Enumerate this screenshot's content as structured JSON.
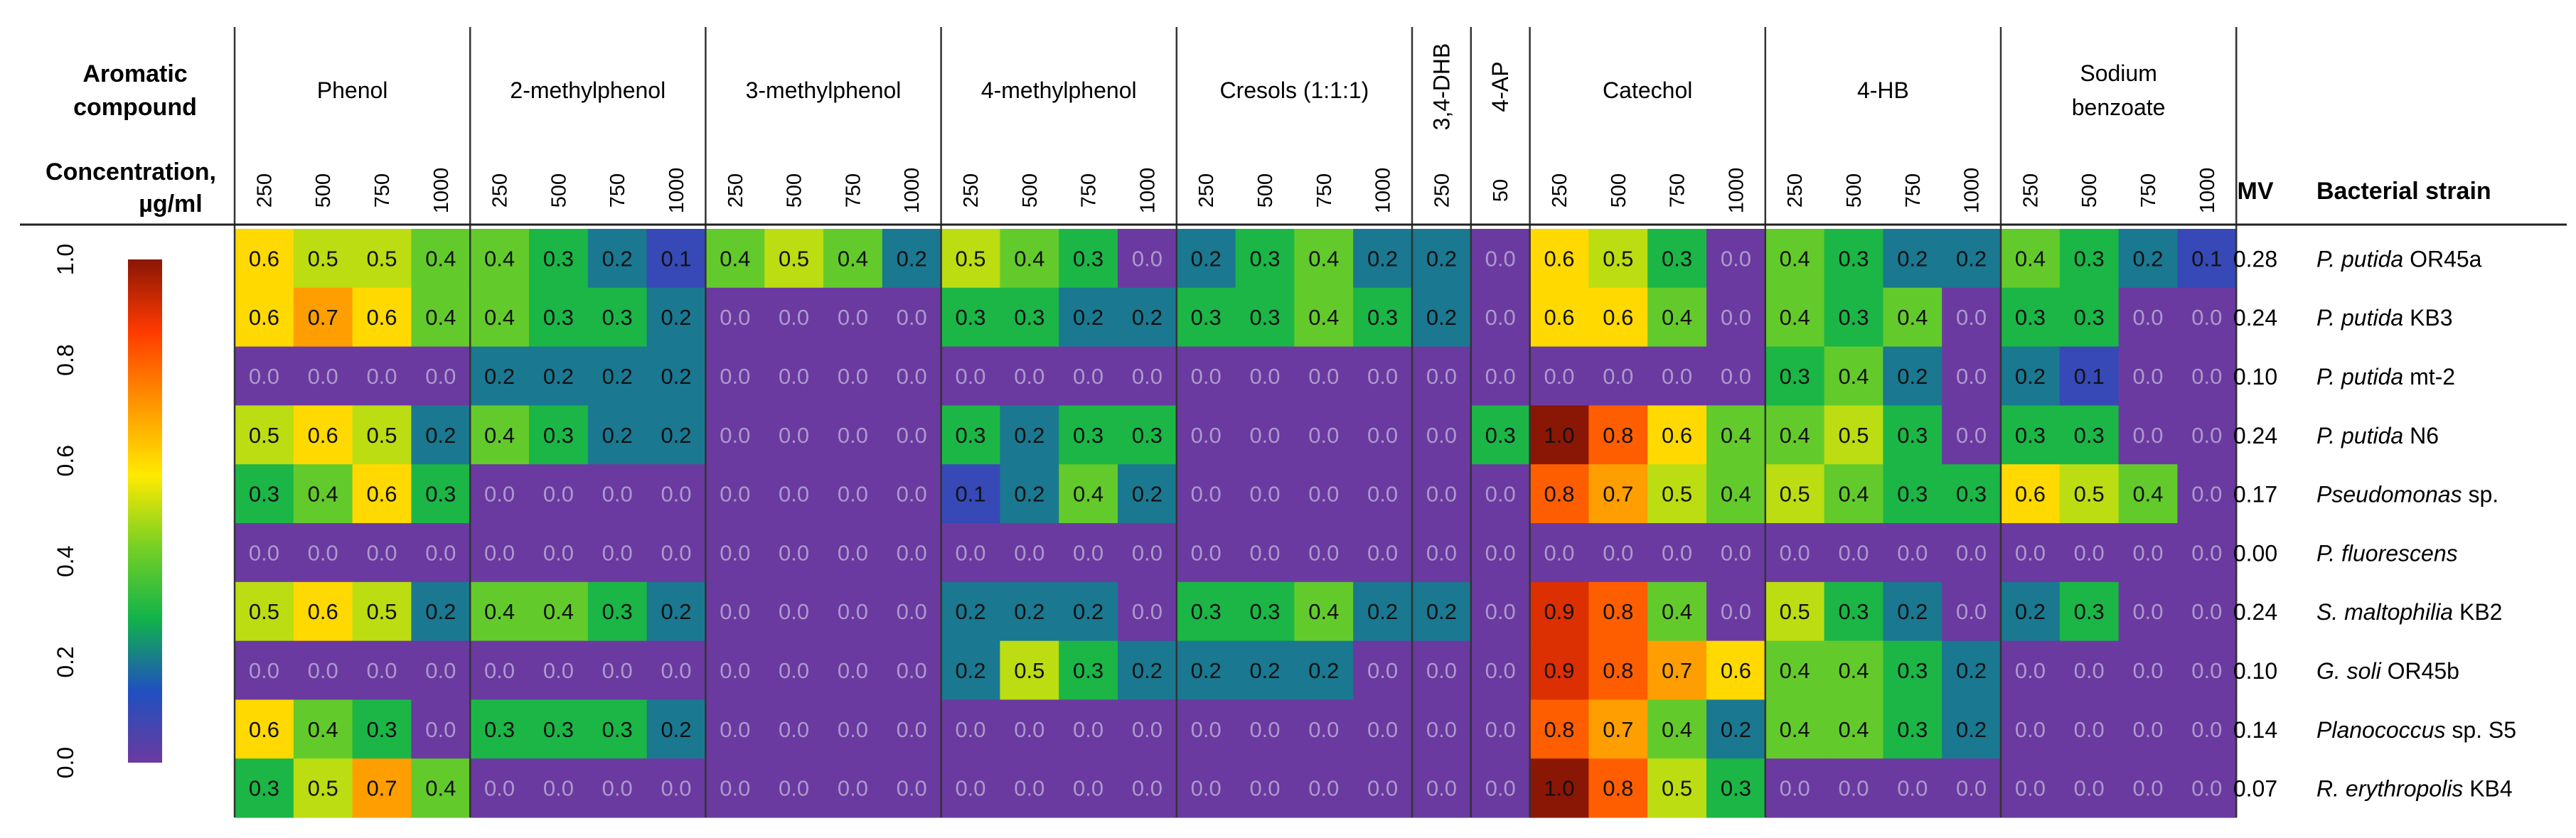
{
  "chart_data": {
    "type": "heatmap",
    "row_header_label": "Aromatic compound",
    "concentration_label": [
      "Concentration,",
      "µg/ml"
    ],
    "mv_header": "MV",
    "strain_header": "Bacterial strain",
    "groups": [
      {
        "name": [
          "Phenol"
        ],
        "concentrations": [
          "250",
          "500",
          "750",
          "1000"
        ]
      },
      {
        "name": [
          "2-methylphenol"
        ],
        "concentrations": [
          "250",
          "500",
          "750",
          "1000"
        ]
      },
      {
        "name": [
          "3-methylphenol"
        ],
        "concentrations": [
          "250",
          "500",
          "750",
          "1000"
        ]
      },
      {
        "name": [
          "4-methylphenol"
        ],
        "concentrations": [
          "250",
          "500",
          "750",
          "1000"
        ]
      },
      {
        "name": [
          "Cresols (1:1:1)"
        ],
        "concentrations": [
          "250",
          "500",
          "750",
          "1000"
        ]
      },
      {
        "name": [
          "3,4-DHB"
        ],
        "concentrations": [
          "250"
        ],
        "vertical": true
      },
      {
        "name": [
          "4-AP"
        ],
        "concentrations": [
          "50"
        ],
        "vertical": true
      },
      {
        "name": [
          "Catechol"
        ],
        "concentrations": [
          "250",
          "500",
          "750",
          "1000"
        ]
      },
      {
        "name": [
          "4-HB"
        ],
        "concentrations": [
          "250",
          "500",
          "750",
          "1000"
        ]
      },
      {
        "name": [
          "Sodium",
          "benzoate"
        ],
        "concentrations": [
          "250",
          "500",
          "750",
          "1000"
        ]
      }
    ],
    "rows": [
      {
        "genus": "P. putida",
        "suffix": " OR45a",
        "mv": "0.28",
        "values": [
          0.6,
          0.5,
          0.5,
          0.4,
          0.4,
          0.3,
          0.2,
          0.1,
          0.4,
          0.5,
          0.4,
          0.2,
          0.5,
          0.4,
          0.3,
          0.0,
          0.2,
          0.3,
          0.4,
          0.2,
          0.2,
          0.0,
          0.6,
          0.5,
          0.3,
          0.0,
          0.4,
          0.3,
          0.2,
          0.2,
          0.4,
          0.3,
          0.2,
          0.1
        ]
      },
      {
        "genus": "P. putida",
        "suffix": " KB3",
        "mv": "0.24",
        "values": [
          0.6,
          0.7,
          0.6,
          0.4,
          0.4,
          0.3,
          0.3,
          0.2,
          0.0,
          0.0,
          0.0,
          0.0,
          0.3,
          0.3,
          0.2,
          0.2,
          0.3,
          0.3,
          0.4,
          0.3,
          0.2,
          0.0,
          0.6,
          0.6,
          0.4,
          0.0,
          0.4,
          0.3,
          0.4,
          0.0,
          0.3,
          0.3,
          0.0,
          0.0
        ]
      },
      {
        "genus": "P. putida",
        "suffix": " mt-2",
        "mv": "0.10",
        "values": [
          0.0,
          0.0,
          0.0,
          0.0,
          0.2,
          0.2,
          0.2,
          0.2,
          0.0,
          0.0,
          0.0,
          0.0,
          0.0,
          0.0,
          0.0,
          0.0,
          0.0,
          0.0,
          0.0,
          0.0,
          0.0,
          0.0,
          0.0,
          0.0,
          0.0,
          0.0,
          0.3,
          0.4,
          0.2,
          0.0,
          0.2,
          0.1,
          0.0,
          0.0
        ]
      },
      {
        "genus": "P. putida",
        "suffix": " N6",
        "mv": "0.24",
        "values": [
          0.5,
          0.6,
          0.5,
          0.2,
          0.4,
          0.3,
          0.2,
          0.2,
          0.0,
          0.0,
          0.0,
          0.0,
          0.3,
          0.2,
          0.3,
          0.3,
          0.0,
          0.0,
          0.0,
          0.0,
          0.0,
          0.3,
          1.0,
          0.8,
          0.6,
          0.4,
          0.4,
          0.5,
          0.3,
          0.0,
          0.3,
          0.3,
          0.0,
          0.0
        ]
      },
      {
        "genus": "Pseudomonas",
        "suffix": " sp.",
        "suffix_italic": false,
        "mv": "0.17",
        "values": [
          0.3,
          0.4,
          0.6,
          0.3,
          0.0,
          0.0,
          0.0,
          0.0,
          0.0,
          0.0,
          0.0,
          0.0,
          0.1,
          0.2,
          0.4,
          0.2,
          0.0,
          0.0,
          0.0,
          0.0,
          0.0,
          0.0,
          0.8,
          0.7,
          0.5,
          0.4,
          0.5,
          0.4,
          0.3,
          0.3,
          0.6,
          0.5,
          0.4,
          0.0
        ]
      },
      {
        "genus": "P. fluorescens",
        "suffix": "",
        "mv": "0.00",
        "values": [
          0.0,
          0.0,
          0.0,
          0.0,
          0.0,
          0.0,
          0.0,
          0.0,
          0.0,
          0.0,
          0.0,
          0.0,
          0.0,
          0.0,
          0.0,
          0.0,
          0.0,
          0.0,
          0.0,
          0.0,
          0.0,
          0.0,
          0.0,
          0.0,
          0.0,
          0.0,
          0.0,
          0.0,
          0.0,
          0.0,
          0.0,
          0.0,
          0.0,
          0.0
        ]
      },
      {
        "genus": "S. maltophilia",
        "suffix": " KB2",
        "mv": "0.24",
        "values": [
          0.5,
          0.6,
          0.5,
          0.2,
          0.4,
          0.4,
          0.3,
          0.2,
          0.0,
          0.0,
          0.0,
          0.0,
          0.2,
          0.2,
          0.2,
          0.0,
          0.3,
          0.3,
          0.4,
          0.2,
          0.2,
          0.0,
          0.9,
          0.8,
          0.4,
          0.0,
          0.5,
          0.3,
          0.2,
          0.0,
          0.2,
          0.3,
          0.0,
          0.0
        ]
      },
      {
        "genus": "G. soli",
        "suffix": " OR45b",
        "mv": "0.10",
        "values": [
          0.0,
          0.0,
          0.0,
          0.0,
          0.0,
          0.0,
          0.0,
          0.0,
          0.0,
          0.0,
          0.0,
          0.0,
          0.2,
          0.5,
          0.3,
          0.2,
          0.2,
          0.2,
          0.2,
          0.0,
          0.0,
          0.0,
          0.9,
          0.8,
          0.7,
          0.6,
          0.4,
          0.4,
          0.3,
          0.2,
          0.0,
          0.0,
          0.0,
          0.0
        ]
      },
      {
        "genus": "Planococcus",
        "suffix": " sp. S5",
        "suffix_italic": false,
        "mv": "0.14",
        "values": [
          0.6,
          0.4,
          0.3,
          0.0,
          0.3,
          0.3,
          0.3,
          0.2,
          0.0,
          0.0,
          0.0,
          0.0,
          0.0,
          0.0,
          0.0,
          0.0,
          0.0,
          0.0,
          0.0,
          0.0,
          0.0,
          0.0,
          0.8,
          0.7,
          0.4,
          0.2,
          0.4,
          0.4,
          0.3,
          0.2,
          0.0,
          0.0,
          0.0,
          0.0
        ]
      },
      {
        "genus": "R. erythropolis",
        "suffix": " KB4",
        "mv": "0.07",
        "values": [
          0.3,
          0.5,
          0.7,
          0.4,
          0.0,
          0.0,
          0.0,
          0.0,
          0.0,
          0.0,
          0.0,
          0.0,
          0.0,
          0.0,
          0.0,
          0.0,
          0.0,
          0.0,
          0.0,
          0.0,
          0.0,
          0.0,
          1.0,
          0.8,
          0.5,
          0.3,
          0.0,
          0.0,
          0.0,
          0.0,
          0.0,
          0.0,
          0.0,
          0.0
        ]
      }
    ],
    "colorbar": {
      "range": [
        0.0,
        1.0
      ],
      "ticks": [
        "0.0",
        "0.2",
        "0.4",
        "0.6",
        "0.8",
        "1.0"
      ]
    },
    "colors": {
      "stops": [
        "#6a3aa0",
        "#2050c0",
        "#11b34a",
        "#77d024",
        "#ffea00",
        "#ff9500",
        "#ff3a00",
        "#8a1606"
      ],
      "zero": "#6a3aa0",
      "zero_text": "#ad99cc",
      "text": "#111111"
    }
  }
}
